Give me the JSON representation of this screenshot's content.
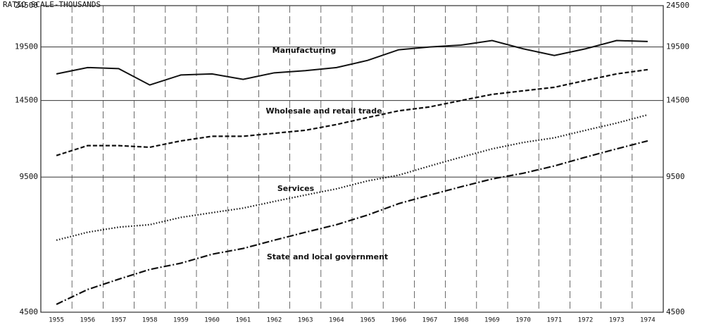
{
  "chart_data": {
    "type": "line",
    "title": "RATIO SCALE-THOUSANDS",
    "categories": [
      "1955",
      "1956",
      "1957",
      "1958",
      "1959",
      "1960",
      "1961",
      "1962",
      "1963",
      "1964",
      "1965",
      "1966",
      "1967",
      "1968",
      "1969",
      "1970",
      "1971",
      "1972",
      "1973",
      "1974"
    ],
    "series": [
      {
        "name": "Manufacturing",
        "color": "#111111",
        "line_style": "solid",
        "values": [
          16800,
          17400,
          17300,
          15800,
          16700,
          16800,
          16300,
          16900,
          17100,
          17400,
          18100,
          19200,
          19500,
          19700,
          20200,
          19300,
          18600,
          19300,
          20200,
          20100
        ]
      },
      {
        "name": "Wholesale and retail trade",
        "color": "#111111",
        "line_style": "dashed",
        "values": [
          10700,
          11300,
          11300,
          11200,
          11600,
          11900,
          11900,
          12100,
          12300,
          12700,
          13200,
          13700,
          14000,
          14500,
          15000,
          15300,
          15600,
          16200,
          16800,
          17200
        ]
      },
      {
        "name": "Services",
        "color": "#111111",
        "line_style": "dotted",
        "values": [
          6700,
          7000,
          7200,
          7300,
          7600,
          7800,
          8000,
          8300,
          8600,
          8900,
          9300,
          9600,
          10100,
          10600,
          11100,
          11500,
          11800,
          12300,
          12800,
          13400
        ]
      },
      {
        "name": "State and local government",
        "color": "#111111",
        "line_style": "dashdot",
        "values": [
          4700,
          5100,
          5400,
          5700,
          5900,
          6200,
          6400,
          6700,
          7000,
          7300,
          7700,
          8200,
          8600,
          9000,
          9400,
          9700,
          10100,
          10600,
          11100,
          11600
        ]
      }
    ],
    "ylim": [
      4500,
      24500
    ],
    "yticks": [
      4500,
      9500,
      14500,
      19500,
      24500
    ],
    "log_scale": true,
    "grid": true
  }
}
